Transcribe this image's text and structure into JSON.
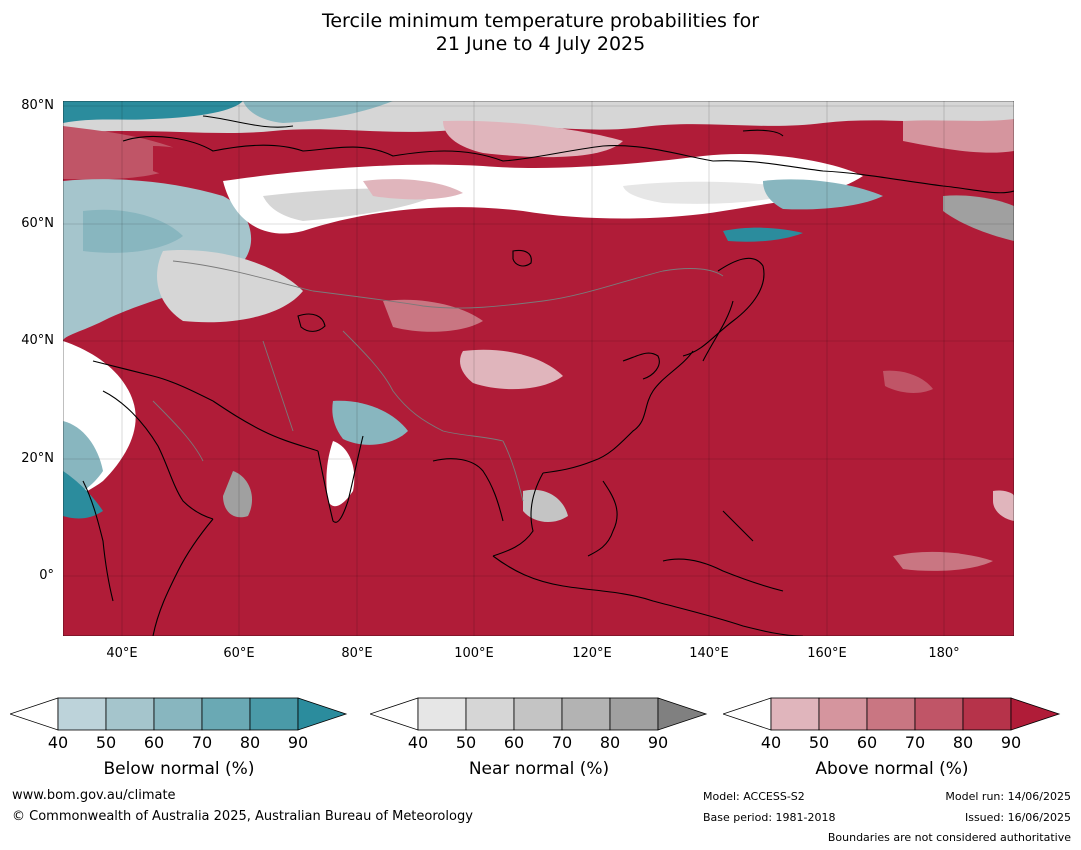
{
  "title_line1": "Tercile minimum temperature probabilities for",
  "title_line2": "21 June to 4 July 2025",
  "lat_labels": [
    "80°N",
    "60°N",
    "40°N",
    "20°N",
    "0°"
  ],
  "lon_labels": [
    "40°E",
    "60°E",
    "80°E",
    "100°E",
    "120°E",
    "140°E",
    "160°E",
    "180°"
  ],
  "colorbars": [
    {
      "label": "Below normal (%)",
      "ticks": [
        "40",
        "50",
        "60",
        "70",
        "80",
        "90"
      ],
      "colors": [
        "#ffffff",
        "#bdd3da",
        "#a5c5cc",
        "#88b6bf",
        "#6aa9b4",
        "#4a9aa8",
        "#2b8c9d"
      ]
    },
    {
      "label": "Near normal (%)",
      "ticks": [
        "40",
        "50",
        "60",
        "70",
        "80",
        "90"
      ],
      "colors": [
        "#ffffff",
        "#e6e6e6",
        "#d6d6d6",
        "#c4c4c4",
        "#b3b3b3",
        "#a0a0a0",
        "#808080"
      ]
    },
    {
      "label": "Above normal (%)",
      "ticks": [
        "40",
        "50",
        "60",
        "70",
        "80",
        "90"
      ],
      "colors": [
        "#ffffff",
        "#e0b5bc",
        "#d5959e",
        "#c97682",
        "#c05567",
        "#b6334a",
        "#b01c38"
      ]
    }
  ],
  "footer": {
    "url": "www.bom.gov.au/climate",
    "copyright": "© Commonwealth of Australia 2025, Australian Bureau of Meteorology",
    "model": "Model: ACCESS-S2",
    "base_period": "Base period: 1981-2018",
    "model_run": "Model run: 14/06/2025",
    "issued": "Issued: 16/06/2025",
    "disclaimer": "Boundaries are not considered authoritative"
  },
  "palette": {
    "below": "#2b8c9d",
    "near": "#a0a0a0",
    "above": "#b01c38",
    "coast": "#000000",
    "borders": "#7a7a7a"
  }
}
